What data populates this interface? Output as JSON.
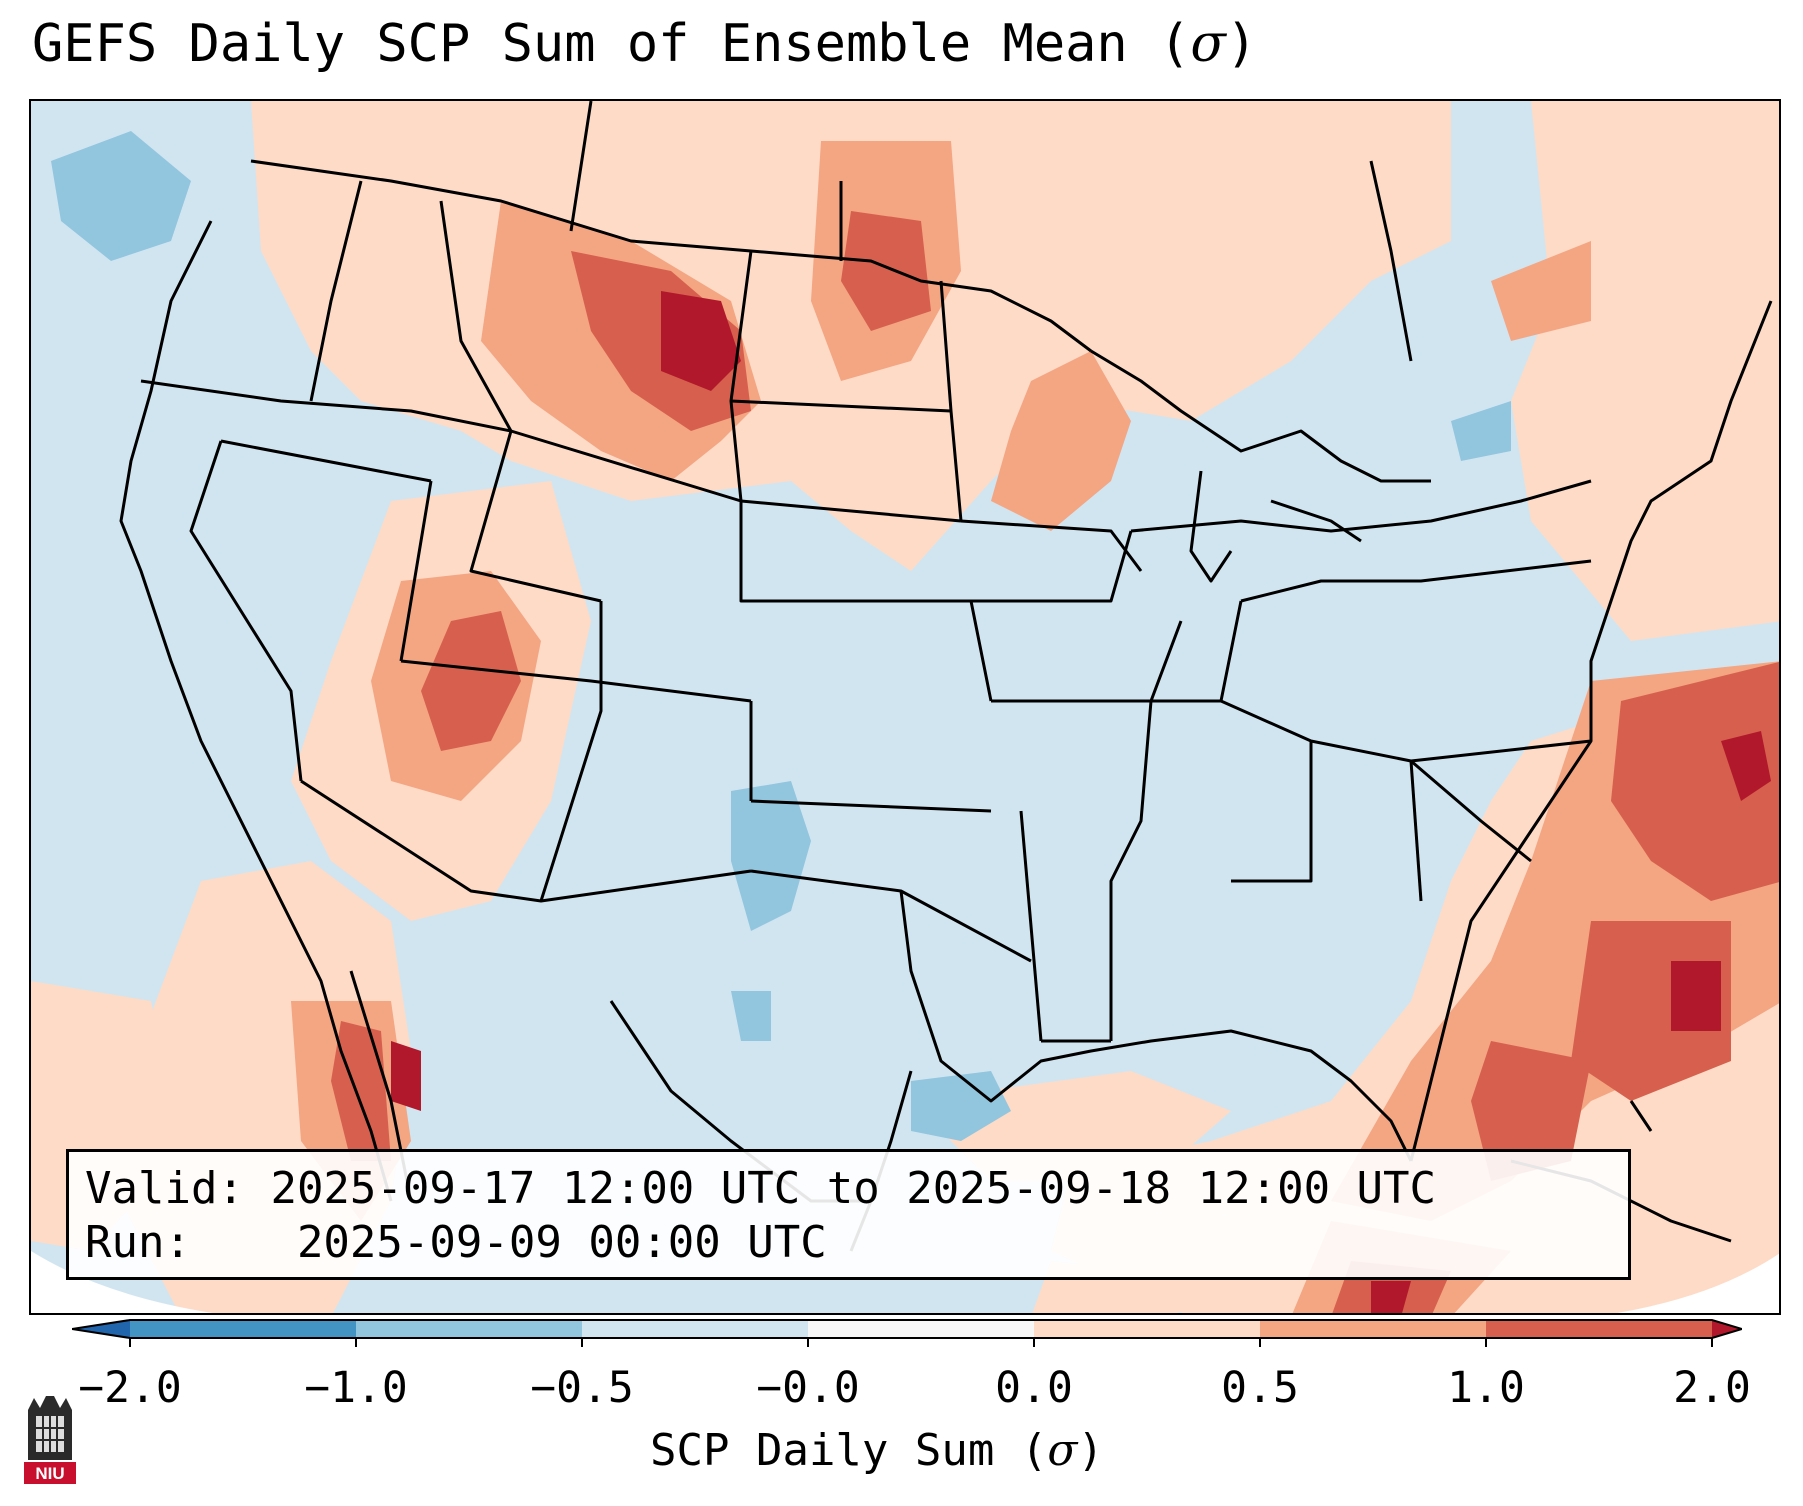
{
  "title": {
    "main": "GEFS Daily SCP Sum of Ensemble Mean (",
    "sigma": "σ",
    "close": ")"
  },
  "info": {
    "valid_label": "Valid:",
    "valid_value": "2025-09-17 12:00 UTC to 2025-09-18 12:00 UTC",
    "run_label": "Run:",
    "run_value": "2025-09-09 00:00 UTC"
  },
  "colorbar": {
    "label_main": "SCP Daily Sum (",
    "label_sigma": "σ",
    "label_close": ")",
    "ticks": [
      "−2.0",
      "−1.0",
      "−0.5",
      "−0.0",
      "0.0",
      "0.5",
      "1.0",
      "2.0"
    ],
    "bins": [
      {
        "range": "< -2.0",
        "color": "#2166ac"
      },
      {
        "range": "-2.0 to -1.0",
        "color": "#4393c3"
      },
      {
        "range": "-1.0 to -0.5",
        "color": "#92c5de"
      },
      {
        "range": "-0.5 to -0.0",
        "color": "#d1e5f0"
      },
      {
        "range": "-0.0 to 0.0",
        "color": "#f7f7f7"
      },
      {
        "range": "0.0 to 0.5",
        "color": "#fddbc7"
      },
      {
        "range": "0.5 to 1.0",
        "color": "#f4a582"
      },
      {
        "range": "1.0 to 2.0",
        "color": "#d6604d"
      },
      {
        "range": "> 2.0",
        "color": "#b2182b"
      }
    ]
  },
  "map": {
    "background": "#d1e5f0",
    "anomaly_regions": [
      {
        "region": "Montana / western Dakotas",
        "category": "1.0 to 2.0"
      },
      {
        "region": "Four Corners (Utah / Colorado / Arizona)",
        "category": "1.0 to 2.0"
      },
      {
        "region": "Upper Midwest / Wisconsin",
        "category": "0.5 to 1.0"
      },
      {
        "region": "Western Atlantic off Carolinas",
        "category": "> 2.0"
      },
      {
        "region": "Bahamas / Florida Straits",
        "category": "1.0 to 2.0"
      },
      {
        "region": "Gulf of California",
        "category": "1.0 to 2.0"
      },
      {
        "region": "Southwest Texas / New Mexico",
        "category": "-1.0 to -0.5"
      }
    ]
  },
  "logo": {
    "text": "NIU"
  }
}
